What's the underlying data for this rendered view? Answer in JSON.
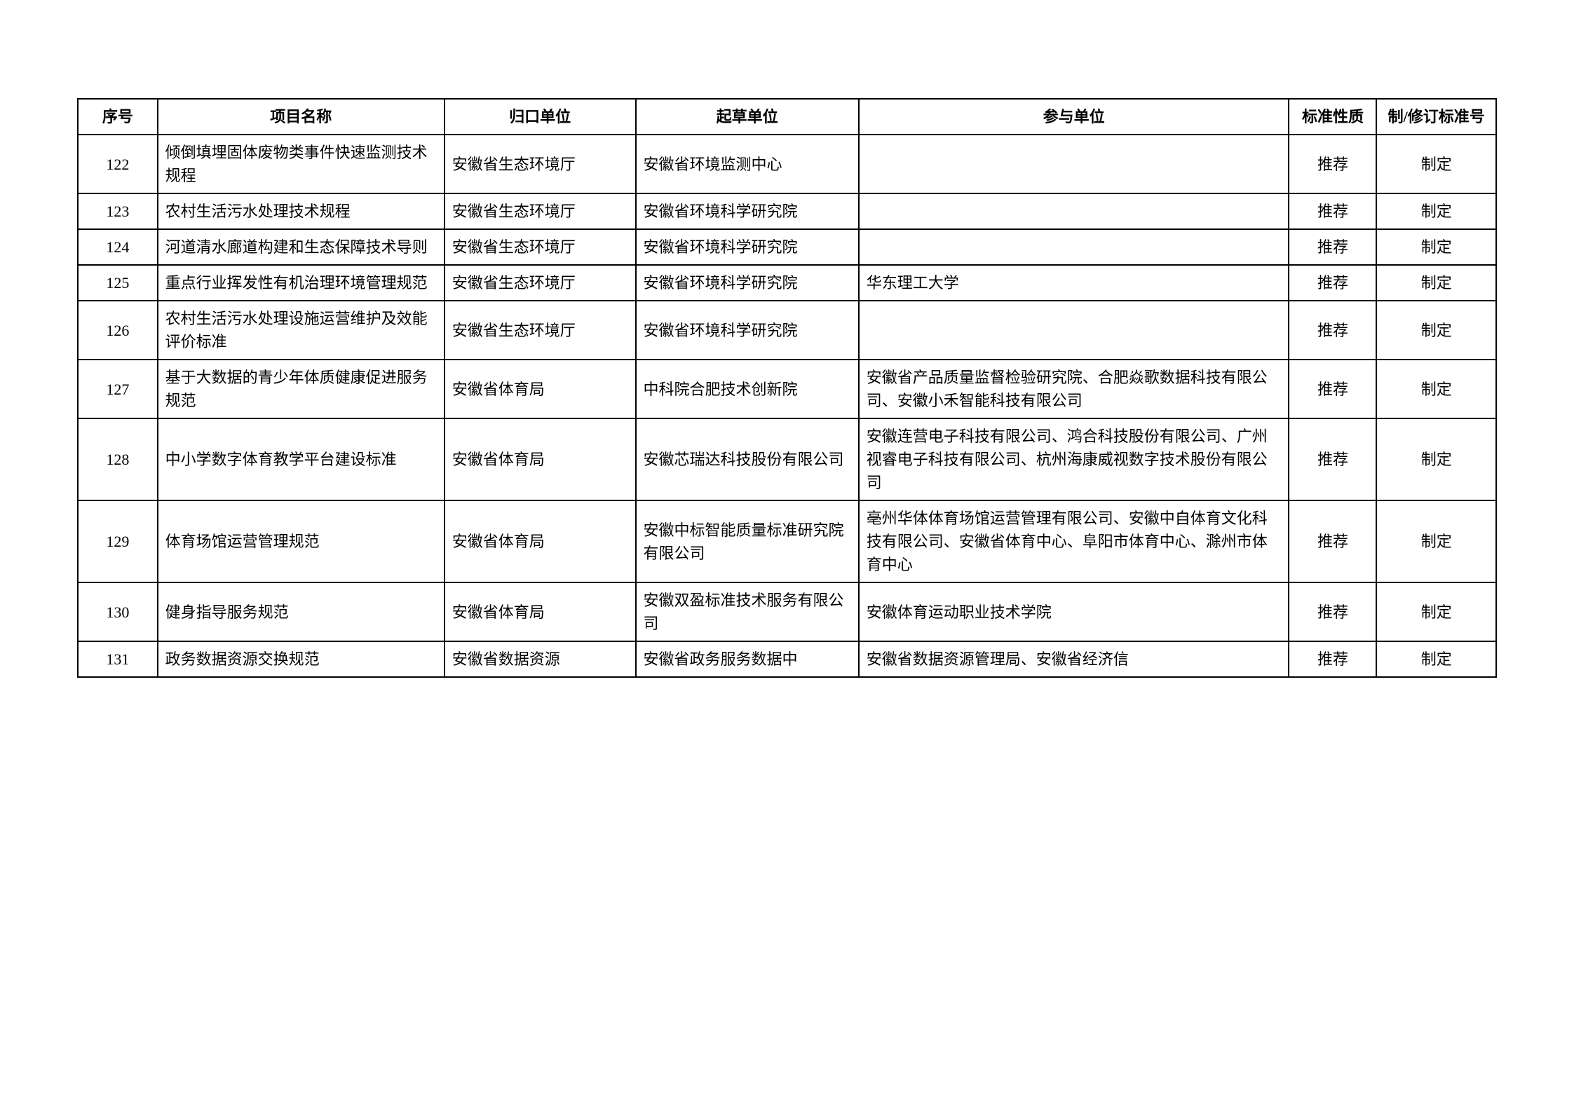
{
  "table": {
    "columns": [
      "序号",
      "项目名称",
      "归口单位",
      "起草单位",
      "参与单位",
      "标准性质",
      "制/修订标准号"
    ],
    "rows": [
      {
        "seq": "122",
        "name": "倾倒填埋固体废物类事件快速监测技术规程",
        "dept": "安徽省生态环境厅",
        "draft": "安徽省环境监测中心",
        "part": "",
        "nature": "推荐",
        "revise": "制定"
      },
      {
        "seq": "123",
        "name": "农村生活污水处理技术规程",
        "dept": "安徽省生态环境厅",
        "draft": "安徽省环境科学研究院",
        "part": "",
        "nature": "推荐",
        "revise": "制定"
      },
      {
        "seq": "124",
        "name": "河道清水廊道构建和生态保障技术导则",
        "dept": "安徽省生态环境厅",
        "draft": "安徽省环境科学研究院",
        "part": "",
        "nature": "推荐",
        "revise": "制定"
      },
      {
        "seq": "125",
        "name": "重点行业挥发性有机治理环境管理规范",
        "dept": "安徽省生态环境厅",
        "draft": "安徽省环境科学研究院",
        "part": "华东理工大学",
        "nature": "推荐",
        "revise": "制定"
      },
      {
        "seq": "126",
        "name": "农村生活污水处理设施运营维护及效能评价标准",
        "dept": "安徽省生态环境厅",
        "draft": "安徽省环境科学研究院",
        "part": "",
        "nature": "推荐",
        "revise": "制定"
      },
      {
        "seq": "127",
        "name": "基于大数据的青少年体质健康促进服务规范",
        "dept": "安徽省体育局",
        "draft": "中科院合肥技术创新院",
        "part": "安徽省产品质量监督检验研究院、合肥焱歌数据科技有限公司、安徽小禾智能科技有限公司",
        "nature": "推荐",
        "revise": "制定"
      },
      {
        "seq": "128",
        "name": "中小学数字体育教学平台建设标准",
        "dept": "安徽省体育局",
        "draft": "安徽芯瑞达科技股份有限公司",
        "part": "安徽连营电子科技有限公司、鸿合科技股份有限公司、广州视睿电子科技有限公司、杭州海康威视数字技术股份有限公司",
        "nature": "推荐",
        "revise": "制定"
      },
      {
        "seq": "129",
        "name": "体育场馆运营管理规范",
        "dept": "安徽省体育局",
        "draft": "安徽中标智能质量标准研究院有限公司",
        "part": "亳州华体体育场馆运营管理有限公司、安徽中自体育文化科技有限公司、安徽省体育中心、阜阳市体育中心、滁州市体育中心",
        "nature": "推荐",
        "revise": "制定"
      },
      {
        "seq": "130",
        "name": "健身指导服务规范",
        "dept": "安徽省体育局",
        "draft": "安徽双盈标准技术服务有限公司",
        "part": "安徽体育运动职业技术学院",
        "nature": "推荐",
        "revise": "制定"
      },
      {
        "seq": "131",
        "name": "政务数据资源交换规范",
        "dept": "安徽省数据资源",
        "draft": "安徽省政务服务数据中",
        "part": "安徽省数据资源管理局、安徽省经济信",
        "nature": "推荐",
        "revise": "制定"
      }
    ]
  }
}
